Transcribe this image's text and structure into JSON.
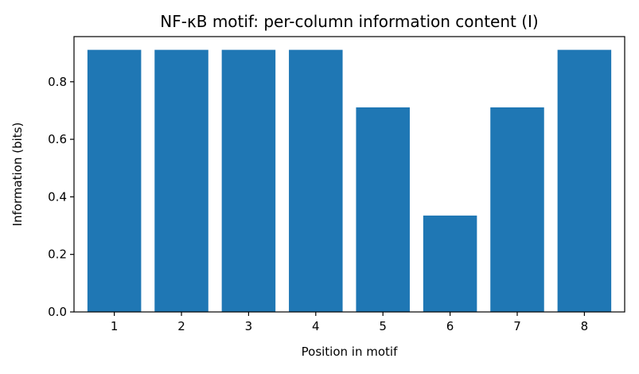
{
  "chart_data": {
    "type": "bar",
    "title": "NF-κB motif: per-column information content (I)",
    "xlabel": "Position in motif",
    "ylabel": "Information (bits)",
    "categories": [
      "1",
      "2",
      "3",
      "4",
      "5",
      "6",
      "7",
      "8"
    ],
    "values": [
      0.911,
      0.911,
      0.911,
      0.911,
      0.711,
      0.335,
      0.711,
      0.911
    ],
    "ylim": [
      0,
      0.957
    ],
    "yticks": [
      0.0,
      0.2,
      0.4,
      0.6,
      0.8
    ],
    "ytick_labels": [
      "0.0",
      "0.2",
      "0.4",
      "0.6",
      "0.8"
    ],
    "bar_color": "#1f77b4",
    "grid": false
  }
}
